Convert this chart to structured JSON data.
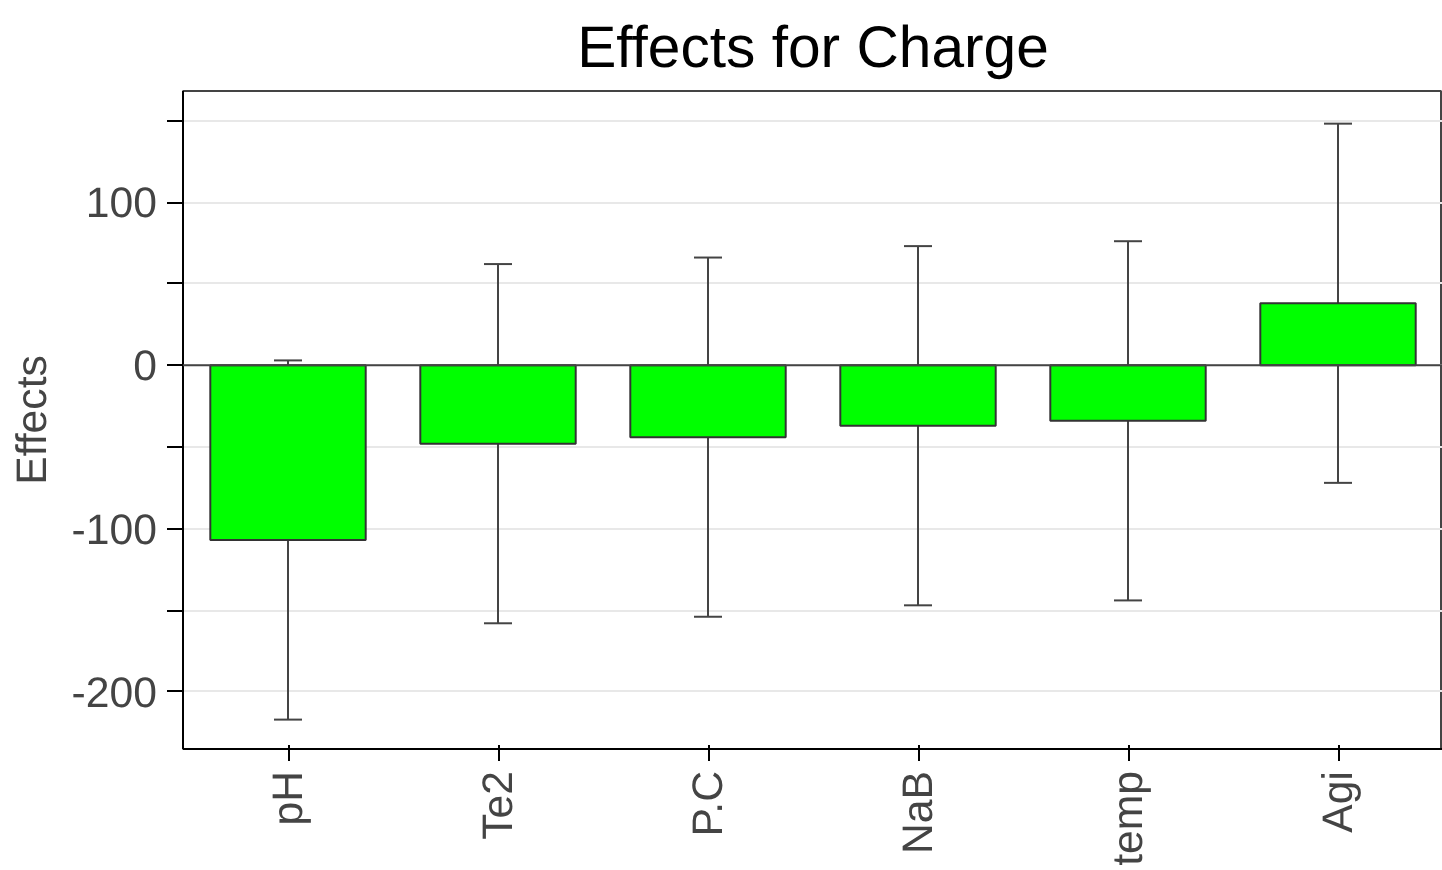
{
  "chart_data": {
    "type": "bar",
    "title": "Effects for Charge",
    "ylabel": "Effects",
    "categories": [
      "pH",
      "Te2",
      "P.C",
      "NaB",
      "temp",
      "Agi"
    ],
    "values": [
      -107,
      -48,
      -44,
      -37,
      -34,
      38
    ],
    "errors": [
      110,
      110,
      110,
      110,
      110,
      110
    ],
    "color": "#00ff00",
    "ylim": [
      -235,
      168
    ],
    "yticks": [
      {
        "value": -150,
        "label": null
      },
      {
        "value": -50,
        "label": null
      },
      {
        "value": 50,
        "label": null
      },
      {
        "value": 150,
        "label": null
      },
      -200,
      -100,
      0,
      100
    ],
    "grid": "y"
  }
}
